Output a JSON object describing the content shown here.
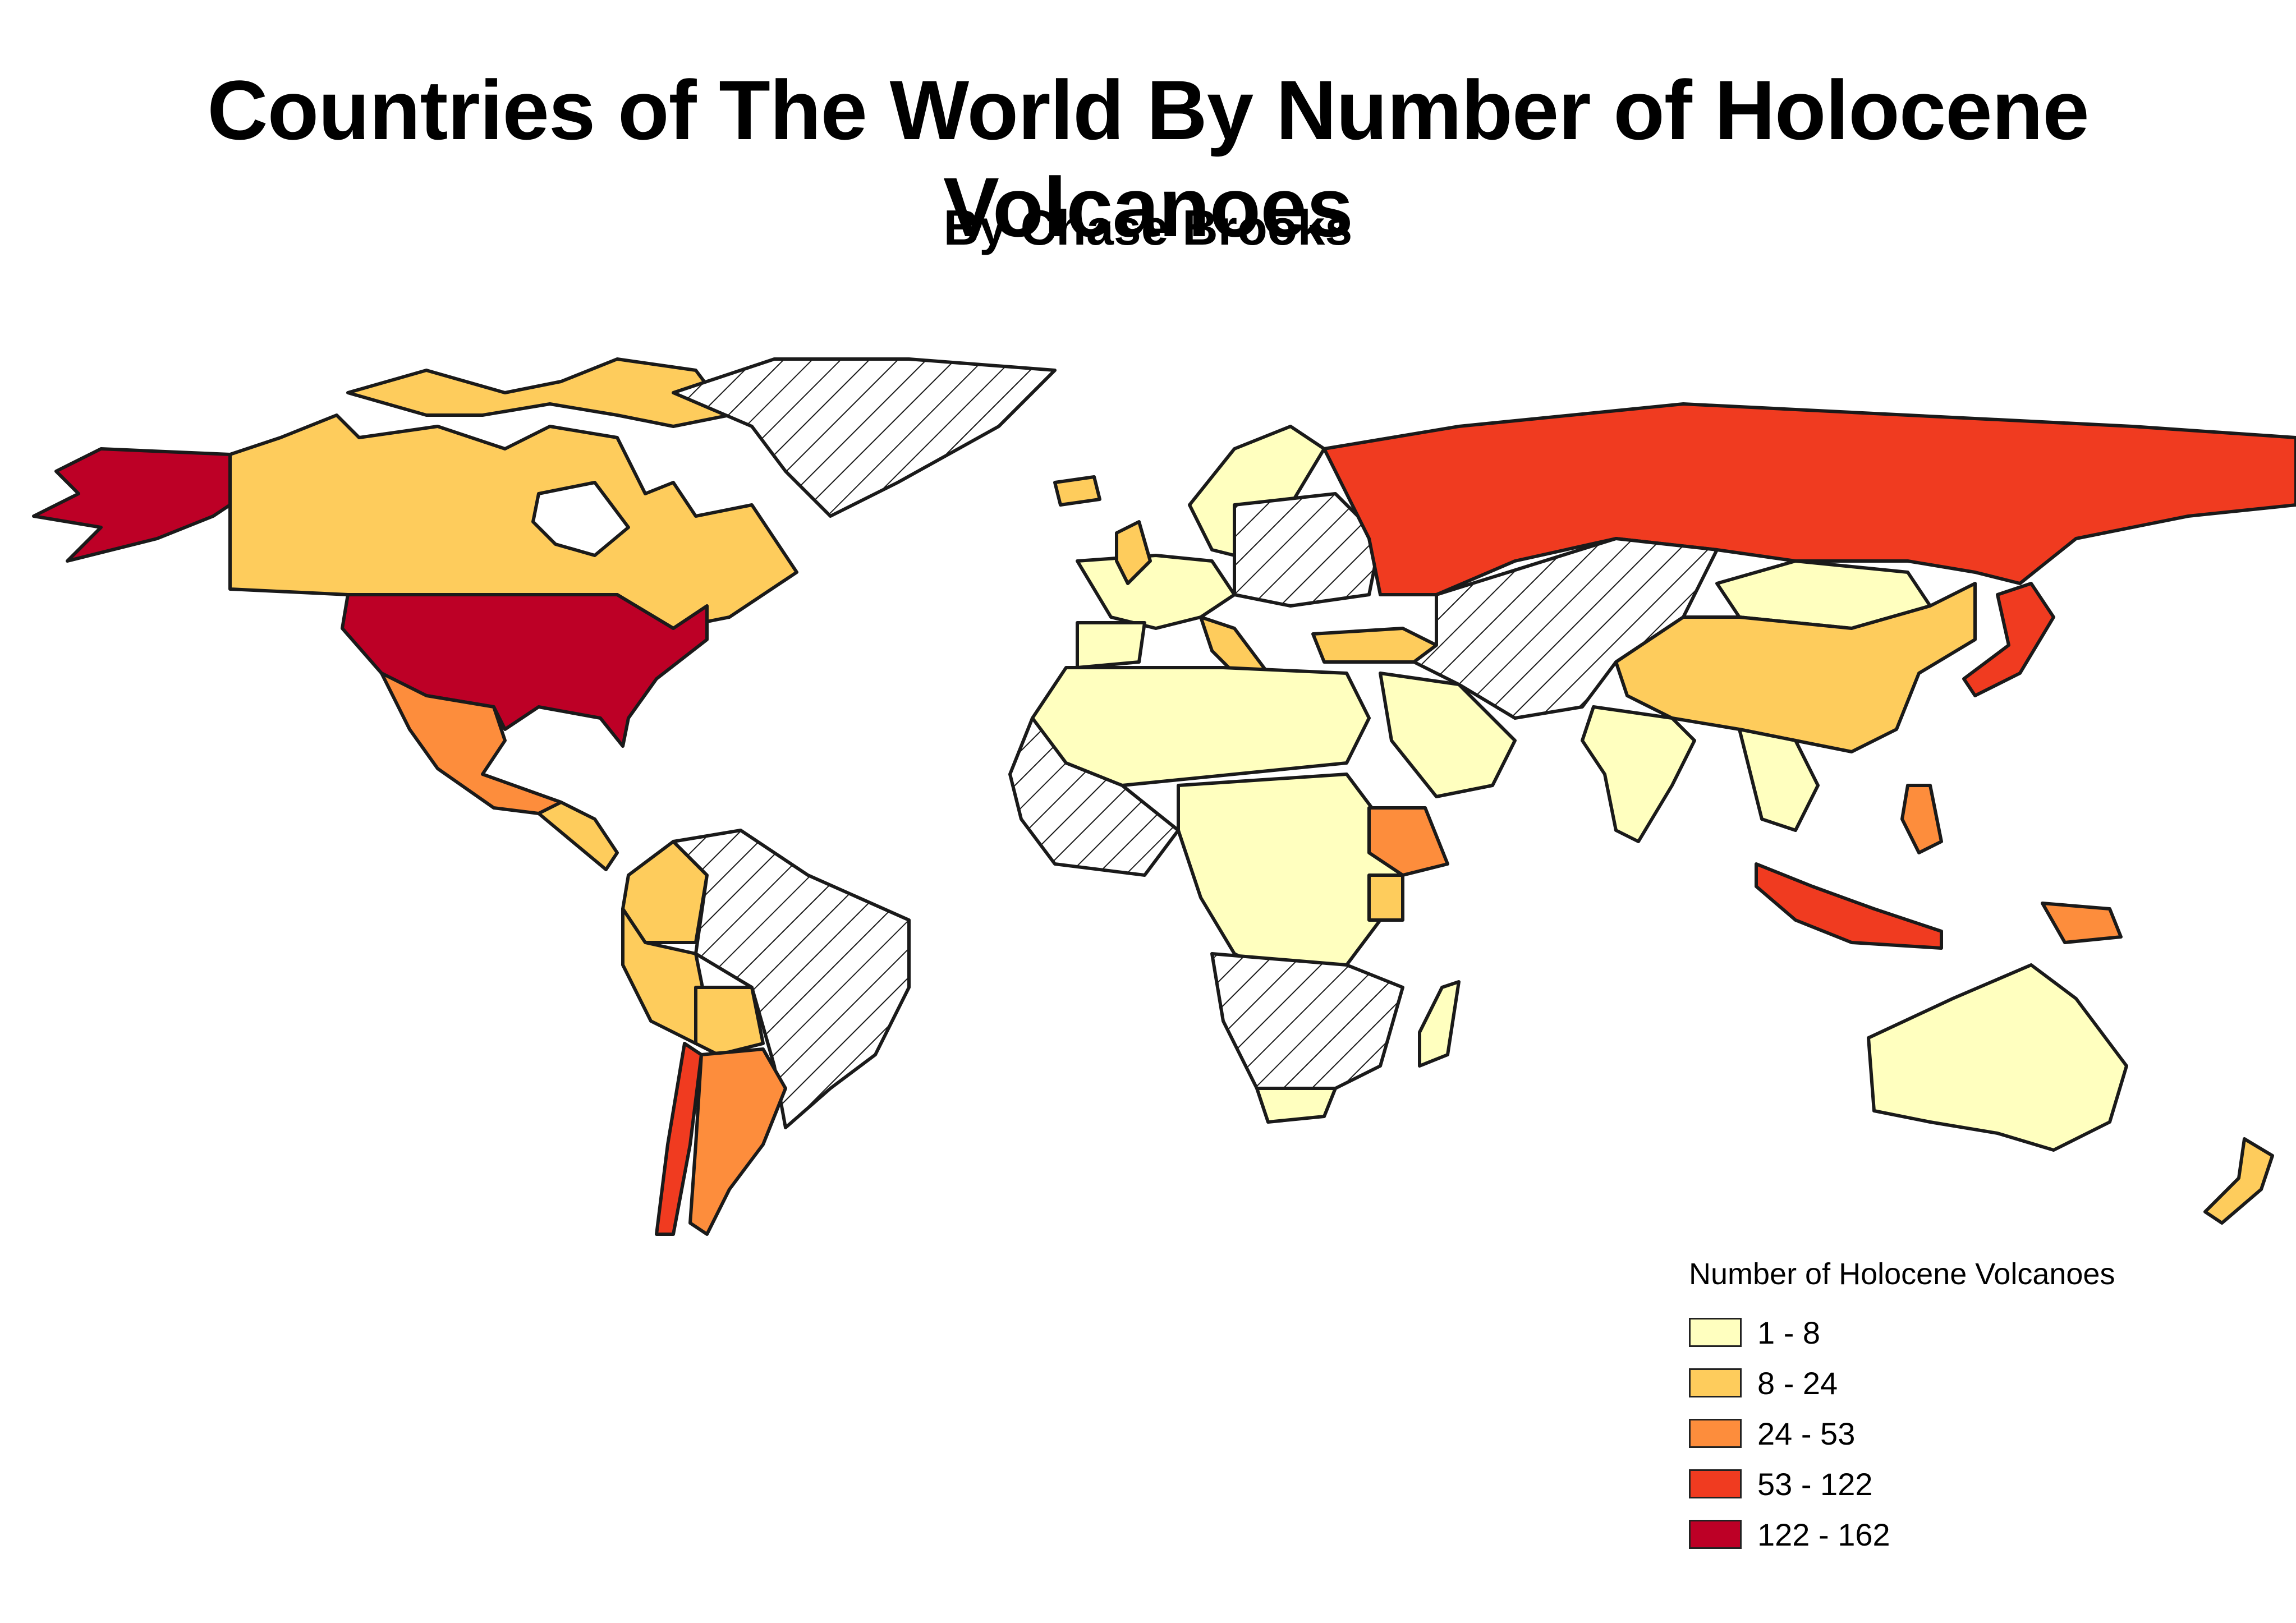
{
  "title": "Countries of The World By Number of Holocene Volcanoes",
  "subtitle": "By Chase Brooks",
  "legend": {
    "title": "Number of Holocene Volcanoes",
    "items": [
      {
        "label": "1 - 8",
        "color": "#ffffbf"
      },
      {
        "label": "8 - 24",
        "color": "#fecc5c"
      },
      {
        "label": "24 - 53",
        "color": "#fd8d3c"
      },
      {
        "label": "53 - 122",
        "color": "#f03b20"
      },
      {
        "label": "122 - 162",
        "color": "#bd0026"
      }
    ]
  },
  "map_style": {
    "no_data_fill": "hatched",
    "stroke": "#1a1a1a"
  }
}
